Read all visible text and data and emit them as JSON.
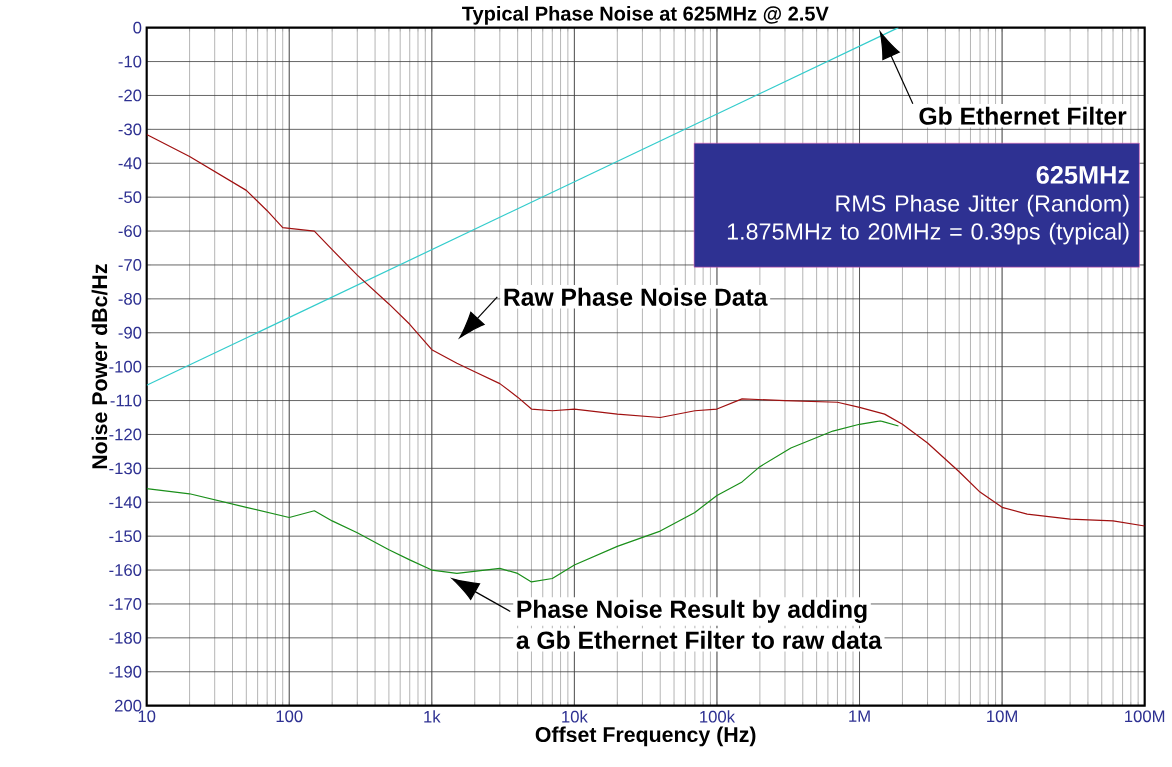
{
  "chart_data": {
    "type": "line",
    "title": "Typical Phase Noise at 625MHz @ 2.5V",
    "xlabel": "Offset Frequency (Hz)",
    "ylabel": "Noise Power dBc/Hz",
    "log": "x",
    "grid": true,
    "xlim": [
      10,
      100000000
    ],
    "ylim": [
      -200,
      0
    ],
    "xticks": [
      10,
      100,
      {
        "value": 1000,
        "label": "1k"
      },
      {
        "value": 10000,
        "label": "10k"
      },
      {
        "value": 100000,
        "label": "100k"
      },
      {
        "value": 1000000,
        "label": "1M"
      },
      {
        "value": 10000000,
        "label": "10M"
      },
      {
        "value": 100000000,
        "label": "100M"
      }
    ],
    "yticks": [
      0,
      -10,
      -20,
      -30,
      -40,
      -50,
      -60,
      -70,
      -80,
      -90,
      -100,
      -110,
      -120,
      -130,
      -140,
      -150,
      -160,
      -170,
      -180,
      -190,
      {
        "value": -200,
        "label": "200"
      }
    ],
    "series": [
      {
        "color": "#33cccc",
        "x": [
          10,
          1875000
        ],
        "values": [
          -105.5,
          0
        ]
      },
      {
        "color": "#a01010",
        "x": [
          10,
          20,
          50,
          70,
          90,
          150,
          200,
          300,
          500,
          700,
          1000,
          1500,
          2000,
          3000,
          4000,
          5000,
          7000,
          10000,
          20000,
          40000,
          70000,
          100000,
          150000,
          300000,
          700000,
          1000000,
          1500000,
          2000000,
          3000000,
          5000000,
          7000000,
          10000000,
          15000000,
          30000000,
          60000000,
          100000000
        ],
        "values": [
          -31.5,
          -38,
          -48,
          -54,
          -59,
          -60,
          -65.5,
          -73,
          -81.5,
          -87.5,
          -95,
          -99,
          -101.5,
          -105,
          -109,
          -112.5,
          -113,
          -112.5,
          -114,
          -115,
          -113,
          -112.5,
          -109.5,
          -110,
          -110.5,
          -112,
          -114,
          -117,
          -122.5,
          -131,
          -137,
          -141.5,
          -143.5,
          -145,
          -145.5,
          -147
        ]
      },
      {
        "color": "#1a8f1a",
        "x": [
          10,
          20,
          50,
          100,
          150,
          200,
          300,
          500,
          700,
          1000,
          1500,
          3000,
          4000,
          5000,
          7000,
          10000,
          20000,
          40000,
          70000,
          100000,
          150000,
          200000,
          330000,
          650000,
          1000000,
          1400000,
          1875000
        ],
        "values": [
          -136,
          -137.5,
          -141.5,
          -144.5,
          -142.5,
          -145.5,
          -149,
          -154,
          -157,
          -160,
          -161,
          -159.5,
          -161,
          -163.5,
          -162.5,
          -158.5,
          -153,
          -148.5,
          -143,
          -138,
          -134,
          -129.5,
          -124,
          -119,
          -117,
          -116,
          -117.5
        ]
      }
    ],
    "annotations": [
      "Raw Phase Noise Data",
      "Gb Ethernet Filter",
      "Phase Noise Result by adding",
      "a Gb Ethernet Filter to raw data",
      "625MHz",
      "RMS Phase Jitter (Random)",
      "1.875MHz to 20MHz = 0.39ps (typical)"
    ]
  }
}
